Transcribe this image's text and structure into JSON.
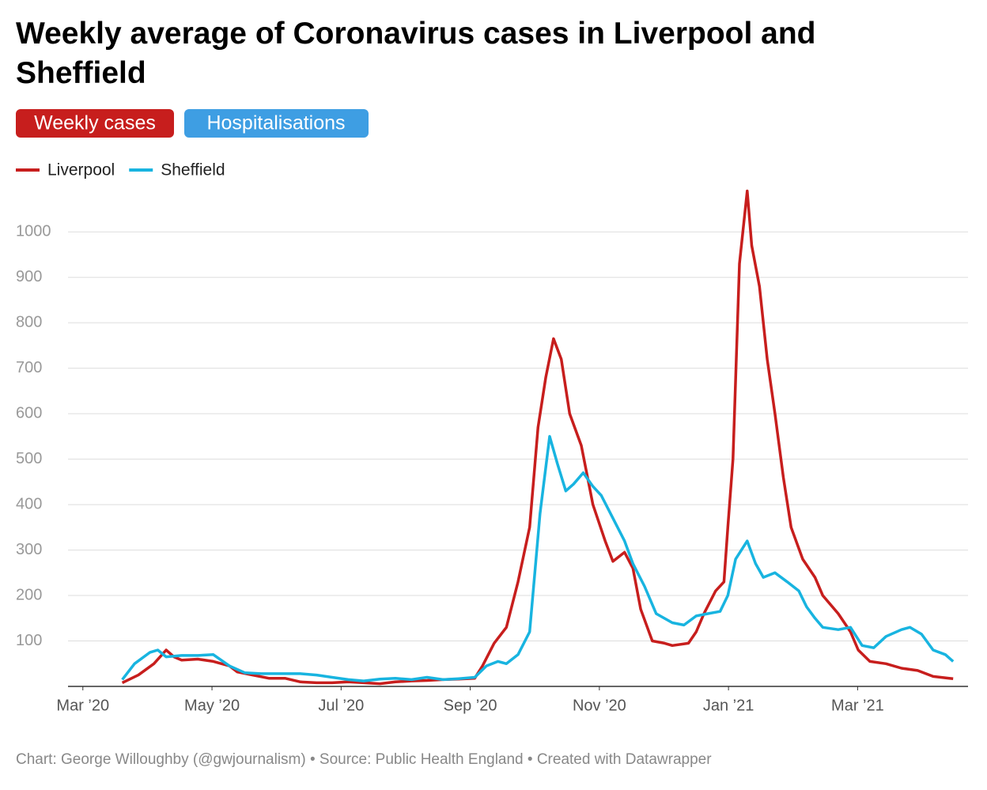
{
  "chart_data": {
    "type": "line",
    "title": "Weekly average of Coronavirus cases in Liverpool and Sheffield",
    "buttons": [
      "Weekly cases",
      "Hospitalisations"
    ],
    "footer": "Chart: George Willoughby (@gwjournalism) • Source: Public Health England • Created with Datawrapper",
    "xlim": [
      -0.23,
      13.71
    ],
    "xticks": [
      {
        "value": 0,
        "label": "Mar ’20"
      },
      {
        "value": 2,
        "label": "May ’20"
      },
      {
        "value": 4,
        "label": "Jul ’20"
      },
      {
        "value": 6,
        "label": "Sep ’20"
      },
      {
        "value": 8,
        "label": "Nov ’20"
      },
      {
        "value": 10,
        "label": "Jan ’21"
      },
      {
        "value": 12,
        "label": "Mar ’21"
      }
    ],
    "ylim": [
      0,
      1110
    ],
    "yticks": [
      100,
      200,
      300,
      400,
      500,
      600,
      700,
      800,
      900,
      1000
    ],
    "grid": true,
    "series": [
      {
        "name": "Liverpool",
        "color": "#c71e1d",
        "x": [
          0.61,
          0.86,
          1.1,
          1.29,
          1.41,
          1.53,
          1.78,
          2.02,
          2.27,
          2.39,
          2.63,
          2.88,
          3.13,
          3.37,
          3.62,
          3.86,
          4.11,
          4.35,
          4.6,
          4.84,
          5.09,
          5.33,
          5.58,
          5.82,
          6.07,
          6.19,
          6.37,
          6.56,
          6.74,
          6.92,
          7.05,
          7.17,
          7.29,
          7.41,
          7.54,
          7.72,
          7.9,
          8.09,
          8.21,
          8.39,
          8.52,
          8.64,
          8.82,
          9.01,
          9.13,
          9.38,
          9.5,
          9.62,
          9.8,
          9.93,
          9.99,
          10.07,
          10.17,
          10.29,
          10.36,
          10.48,
          10.6,
          10.72,
          10.85,
          10.97,
          11.15,
          11.34,
          11.46,
          11.7,
          11.89,
          12.01,
          12.19,
          12.44,
          12.68,
          12.93,
          13.17,
          13.42,
          13.48
        ],
        "values": [
          8,
          25,
          50,
          80,
          65,
          58,
          60,
          55,
          45,
          32,
          25,
          18,
          18,
          10,
          8,
          8,
          10,
          8,
          6,
          10,
          12,
          13,
          15,
          16,
          18,
          45,
          95,
          130,
          230,
          350,
          570,
          680,
          765,
          720,
          600,
          530,
          400,
          320,
          275,
          295,
          260,
          170,
          100,
          95,
          90,
          95,
          120,
          160,
          210,
          230,
          350,
          500,
          930,
          1090,
          970,
          880,
          720,
          600,
          460,
          350,
          280,
          240,
          200,
          160,
          120,
          80,
          55,
          50,
          40,
          35,
          22,
          18,
          17
        ]
      },
      {
        "name": "Sheffield",
        "color": "#18b4e0",
        "x": [
          0.61,
          0.8,
          1.04,
          1.16,
          1.29,
          1.53,
          1.78,
          2.02,
          2.27,
          2.51,
          2.76,
          3.0,
          3.37,
          3.62,
          3.86,
          4.11,
          4.35,
          4.6,
          4.84,
          5.09,
          5.33,
          5.58,
          5.82,
          6.07,
          6.25,
          6.43,
          6.56,
          6.74,
          6.92,
          7.08,
          7.23,
          7.35,
          7.48,
          7.6,
          7.75,
          7.9,
          8.03,
          8.21,
          8.39,
          8.52,
          8.7,
          8.88,
          9.13,
          9.31,
          9.5,
          9.68,
          9.87,
          9.99,
          10.11,
          10.29,
          10.42,
          10.54,
          10.72,
          10.91,
          11.09,
          11.21,
          11.34,
          11.46,
          11.7,
          11.89,
          12.07,
          12.25,
          12.44,
          12.68,
          12.81,
          12.99,
          13.17,
          13.36,
          13.48
        ],
        "values": [
          15,
          50,
          75,
          80,
          65,
          68,
          68,
          70,
          45,
          30,
          28,
          28,
          28,
          25,
          20,
          15,
          12,
          16,
          18,
          15,
          20,
          15,
          17,
          20,
          45,
          55,
          50,
          70,
          120,
          380,
          550,
          490,
          430,
          445,
          470,
          440,
          420,
          370,
          320,
          270,
          220,
          160,
          140,
          135,
          155,
          160,
          165,
          200,
          280,
          320,
          270,
          240,
          250,
          230,
          210,
          175,
          150,
          130,
          125,
          130,
          90,
          85,
          110,
          125,
          130,
          115,
          80,
          70,
          55
        ]
      }
    ]
  }
}
